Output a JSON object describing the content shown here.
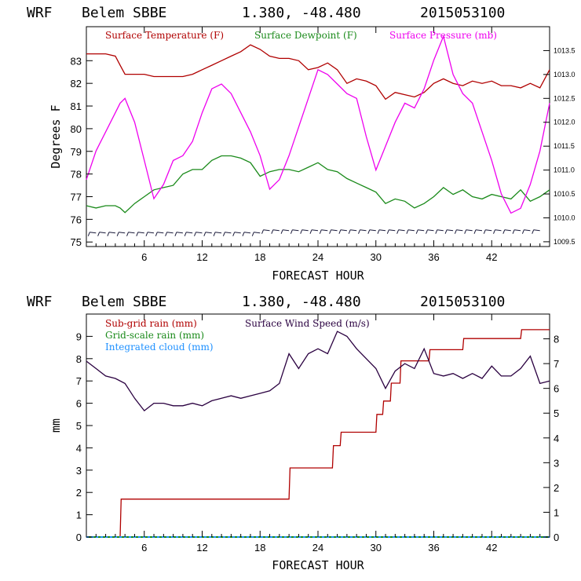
{
  "colors": {
    "temperature": "#b00000",
    "dewpoint": "#1a8a1a",
    "pressure": "#ee00ee",
    "subgrid_rain": "#b00000",
    "gridscale_rain": "#1a8a1a",
    "integrated_cloud": "#1e90ff",
    "wind_speed": "#2a0040",
    "wind_barbs": "#1a1a3a"
  },
  "header": {
    "model": "WRF",
    "station": "Belem SBBE",
    "coords": "1.380, -48.480",
    "init": "2015053100"
  },
  "chart_data": [
    {
      "type": "line",
      "title": "",
      "xlabel": "FORECAST HOUR",
      "ylabel": "Degrees F",
      "xlim": [
        0,
        48
      ],
      "ylim": [
        74.8,
        84.5
      ],
      "y2lim": [
        1009.4,
        1014.0
      ],
      "xticks": [
        6,
        12,
        18,
        24,
        30,
        36,
        42
      ],
      "yticks": [
        75,
        76,
        77,
        78,
        79,
        80,
        81,
        82,
        83
      ],
      "y2ticks": [
        "1009.5",
        "1010.0",
        "1010.5",
        "1011.0",
        "1011.5",
        "1012.0",
        "1012.5",
        "1013.0",
        "1013.5"
      ],
      "legend_placement": "top-left inside",
      "series": [
        {
          "name": "Surface Temperature (F)",
          "axis": "left",
          "x": [
            0,
            1,
            2,
            3,
            3.5,
            4,
            5,
            6,
            7,
            8,
            9,
            10,
            11,
            12,
            13,
            14,
            15,
            16,
            17,
            18,
            19,
            20,
            21,
            22,
            23,
            24,
            25,
            26,
            27,
            28,
            29,
            30,
            31,
            32,
            33,
            34,
            35,
            36,
            37,
            38,
            39,
            40,
            41,
            42,
            43,
            44,
            45,
            46,
            47,
            48
          ],
          "values": [
            83.3,
            83.3,
            83.3,
            83.2,
            82.8,
            82.4,
            82.4,
            82.4,
            82.3,
            82.3,
            82.3,
            82.3,
            82.4,
            82.6,
            82.8,
            83.0,
            83.2,
            83.4,
            83.7,
            83.5,
            83.2,
            83.1,
            83.1,
            83.0,
            82.6,
            82.7,
            82.9,
            82.6,
            82.0,
            82.2,
            82.1,
            81.9,
            81.3,
            81.6,
            81.5,
            81.4,
            81.6,
            82.0,
            82.2,
            82.0,
            81.9,
            82.1,
            82.0,
            82.1,
            81.9,
            81.9,
            81.8,
            82.0,
            81.8,
            82.6
          ]
        },
        {
          "name": "Surface Dewpoint (F)",
          "axis": "left",
          "x": [
            0,
            1,
            2,
            3,
            3.5,
            4,
            5,
            6,
            7,
            8,
            9,
            10,
            11,
            12,
            13,
            14,
            15,
            16,
            17,
            18,
            19,
            20,
            21,
            22,
            23,
            24,
            25,
            26,
            27,
            28,
            29,
            30,
            31,
            32,
            33,
            34,
            35,
            36,
            37,
            38,
            39,
            40,
            41,
            42,
            43,
            44,
            45,
            46,
            47,
            48
          ],
          "values": [
            76.6,
            76.5,
            76.6,
            76.6,
            76.5,
            76.3,
            76.7,
            77.0,
            77.3,
            77.4,
            77.5,
            78.0,
            78.2,
            78.2,
            78.6,
            78.8,
            78.8,
            78.7,
            78.5,
            77.9,
            78.1,
            78.2,
            78.2,
            78.1,
            78.3,
            78.5,
            78.2,
            78.1,
            77.8,
            77.6,
            77.4,
            77.2,
            76.7,
            76.9,
            76.8,
            76.5,
            76.7,
            77.0,
            77.4,
            77.1,
            77.3,
            77.0,
            76.9,
            77.1,
            77.0,
            76.9,
            77.3,
            76.8,
            77.0,
            77.3
          ]
        },
        {
          "name": "Surface Pressure (mb)",
          "axis": "right",
          "x": [
            0,
            1,
            2,
            3,
            3.5,
            4,
            5,
            6,
            7,
            8,
            9,
            10,
            11,
            12,
            13,
            14,
            15,
            16,
            17,
            18,
            19,
            20,
            21,
            22,
            23,
            24,
            25,
            26,
            27,
            28,
            29,
            30,
            31,
            32,
            33,
            34,
            35,
            36,
            37,
            38,
            39,
            40,
            41,
            42,
            43,
            44,
            45,
            46,
            47,
            48
          ],
          "values": [
            1010.8,
            1011.4,
            1011.8,
            1012.2,
            1012.4,
            1012.5,
            1012.0,
            1011.2,
            1010.4,
            1010.7,
            1011.2,
            1011.3,
            1011.6,
            1012.2,
            1012.7,
            1012.8,
            1012.6,
            1012.2,
            1011.8,
            1011.3,
            1010.6,
            1010.8,
            1011.3,
            1011.9,
            1012.5,
            1013.1,
            1013.0,
            1012.8,
            1012.6,
            1012.5,
            1011.7,
            1011.0,
            1011.5,
            1012.0,
            1012.4,
            1012.3,
            1012.7,
            1013.3,
            1013.8,
            1013.0,
            1012.6,
            1012.4,
            1011.8,
            1011.2,
            1010.5,
            1010.1,
            1010.2,
            1010.7,
            1011.4,
            1012.4
          ]
        }
      ]
    },
    {
      "type": "line",
      "title": "",
      "xlabel": "FORECAST HOUR",
      "ylabel": "mm",
      "xlim": [
        0,
        48
      ],
      "ylim": [
        0,
        10
      ],
      "y2lim": [
        0,
        9.0
      ],
      "xticks": [
        6,
        12,
        18,
        24,
        30,
        36,
        42
      ],
      "yticks": [
        0,
        1,
        2,
        3,
        4,
        5,
        6,
        7,
        8,
        9
      ],
      "y2ticks": [
        0,
        1,
        2,
        3,
        4,
        5,
        6,
        7,
        8
      ],
      "legend_placement": "top-left inside",
      "series": [
        {
          "name": "Sub-grid rain (mm)",
          "axis": "left",
          "step": true,
          "x": [
            0,
            3.5,
            3.6,
            21,
            21.1,
            25.5,
            25.6,
            26.3,
            26.4,
            30,
            30.1,
            30.7,
            30.8,
            31.5,
            31.6,
            32.5,
            32.6,
            35.5,
            35.6,
            39,
            39.1,
            45,
            45.1,
            48
          ],
          "values": [
            0,
            0,
            1.7,
            1.7,
            3.1,
            3.1,
            4.1,
            4.1,
            4.7,
            4.7,
            5.5,
            5.5,
            6.1,
            6.1,
            6.9,
            6.9,
            7.9,
            7.9,
            8.4,
            8.4,
            8.9,
            8.9,
            9.3,
            9.3
          ]
        },
        {
          "name": "Grid-scale rain (mm)",
          "axis": "left",
          "x": [
            0,
            48
          ],
          "values": [
            0,
            0
          ]
        },
        {
          "name": "Integrated cloud (mm)",
          "axis": "left",
          "x": [
            0,
            48
          ],
          "values": [
            0,
            0
          ]
        },
        {
          "name": "Surface Wind Speed (m/s)",
          "axis": "right",
          "x": [
            0,
            1,
            2,
            3,
            4,
            5,
            6,
            7,
            8,
            9,
            10,
            11,
            12,
            13,
            14,
            15,
            16,
            17,
            18,
            19,
            20,
            21,
            22,
            23,
            24,
            25,
            26,
            27,
            28,
            29,
            30,
            31,
            32,
            33,
            34,
            35,
            36,
            37,
            38,
            39,
            40,
            41,
            42,
            43,
            44,
            45,
            46,
            47,
            48
          ],
          "values": [
            7.1,
            6.8,
            6.5,
            6.4,
            6.2,
            5.6,
            5.1,
            5.4,
            5.4,
            5.3,
            5.3,
            5.4,
            5.3,
            5.5,
            5.6,
            5.7,
            5.6,
            5.7,
            5.8,
            5.9,
            6.2,
            7.4,
            6.8,
            7.4,
            7.6,
            7.4,
            8.3,
            8.1,
            7.6,
            7.2,
            6.8,
            6.0,
            6.7,
            7.0,
            6.8,
            7.6,
            6.6,
            6.5,
            6.6,
            6.4,
            6.6,
            6.4,
            6.9,
            6.5,
            6.5,
            6.8,
            7.3,
            6.2,
            6.3
          ]
        }
      ]
    }
  ]
}
